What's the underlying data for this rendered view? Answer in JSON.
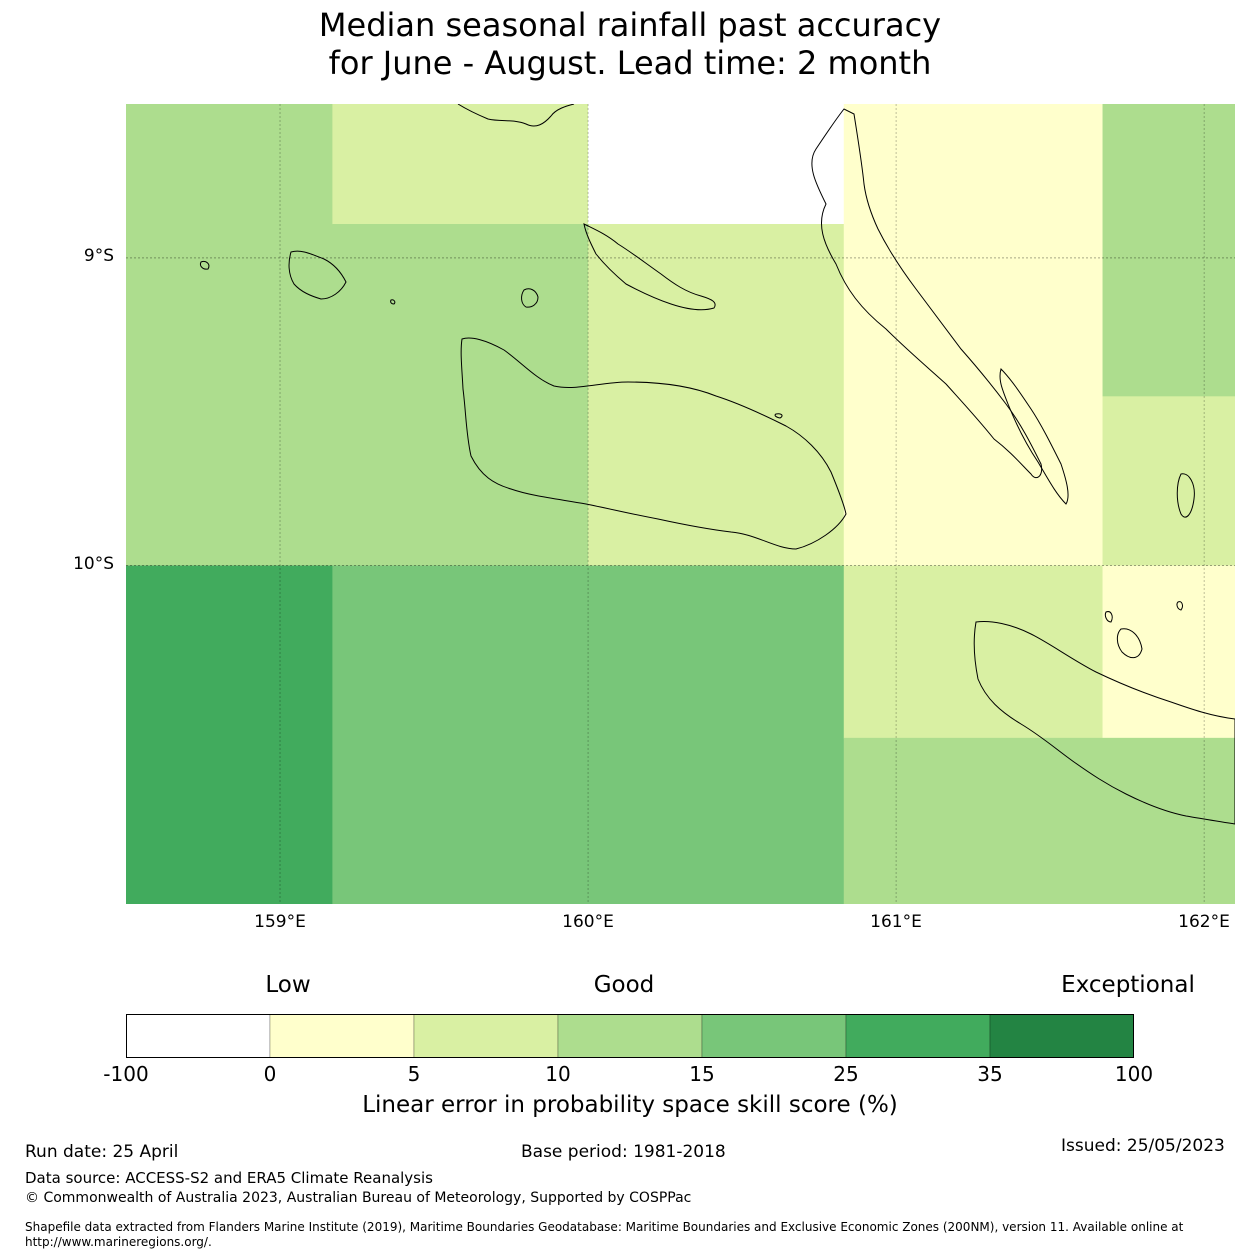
{
  "title": {
    "line1": "Median seasonal rainfall past accuracy",
    "line2": "for June - August. Lead time: 2 month"
  },
  "map": {
    "lat_labels": [
      "9°S",
      "10°S"
    ],
    "lon_labels": [
      "159°E",
      "160°E",
      "161°E",
      "162°E"
    ],
    "extent": {
      "lon_min": 158.5,
      "lon_max": 162.1,
      "lat_north": -8.5,
      "lat_south": -11.1
    },
    "grid_cells": [
      {
        "lon0": 158.5,
        "lon1": 159.17,
        "lat0": -8.5,
        "lat1": -10.0,
        "category": "10-15"
      },
      {
        "lon0": 159.17,
        "lon1": 160.0,
        "lat0": -8.5,
        "lat1": -8.89,
        "category": "5-10"
      },
      {
        "lon0": 159.17,
        "lon1": 160.0,
        "lat0": -8.89,
        "lat1": -10.0,
        "category": "10-15"
      },
      {
        "lon0": 160.0,
        "lon1": 160.83,
        "lat0": -8.5,
        "lat1": -8.89,
        "category": "-100-0"
      },
      {
        "lon0": 160.0,
        "lon1": 160.83,
        "lat0": -8.89,
        "lat1": -10.0,
        "category": "5-10"
      },
      {
        "lon0": 160.83,
        "lon1": 161.67,
        "lat0": -8.5,
        "lat1": -10.0,
        "category": "0-5"
      },
      {
        "lon0": 161.67,
        "lon1": 162.1,
        "lat0": -8.5,
        "lat1": -9.45,
        "category": "10-15"
      },
      {
        "lon0": 161.67,
        "lon1": 162.1,
        "lat0": -9.45,
        "lat1": -10.0,
        "category": "5-10"
      },
      {
        "lon0": 158.5,
        "lon1": 159.17,
        "lat0": -10.0,
        "lat1": -11.1,
        "category": "25-35"
      },
      {
        "lon0": 159.17,
        "lon1": 160.83,
        "lat0": -10.0,
        "lat1": -11.1,
        "category": "15-25"
      },
      {
        "lon0": 160.83,
        "lon1": 161.67,
        "lat0": -10.0,
        "lat1": -10.56,
        "category": "5-10"
      },
      {
        "lon0": 161.67,
        "lon1": 162.1,
        "lat0": -10.0,
        "lat1": -10.56,
        "category": "0-5"
      },
      {
        "lon0": 160.83,
        "lon1": 162.1,
        "lat0": -10.56,
        "lat1": -11.1,
        "category": "10-15"
      }
    ]
  },
  "legend": {
    "low_label": "Low",
    "good_label": "Good",
    "exceptional_label": "Exceptional",
    "ticks": [
      "-100",
      "0",
      "5",
      "10",
      "15",
      "25",
      "35",
      "100"
    ],
    "bins": [
      {
        "id": "-100-0",
        "color": "#ffffff"
      },
      {
        "id": "0-5",
        "color": "#ffffcc"
      },
      {
        "id": "5-10",
        "color": "#d9f0a3"
      },
      {
        "id": "10-15",
        "color": "#addd8e"
      },
      {
        "id": "15-25",
        "color": "#78c679"
      },
      {
        "id": "25-35",
        "color": "#41ab5d"
      },
      {
        "id": "35-100",
        "color": "#238443"
      }
    ],
    "axis_title": "Linear error in probability space skill score (%)"
  },
  "footer": {
    "run_date": "Run date: 25 April",
    "base_period": "Base period: 1981-2018",
    "issued": "Issued: 25/05/2023",
    "data_source": "Data source: ACCESS-S2 and ERA5 Climate Reanalysis",
    "copyright": "© Commonwealth of Australia 2023, Australian Bureau of Meteorology, Supported by COSPPac",
    "shapefile_note": "Shapefile data extracted from Flanders Marine Institute (2019), Maritime Boundaries Geodatabase: Maritime Boundaries and Exclusive Economic Zones (200NM), version 11. Available online at http://www.marineregions.org/."
  }
}
